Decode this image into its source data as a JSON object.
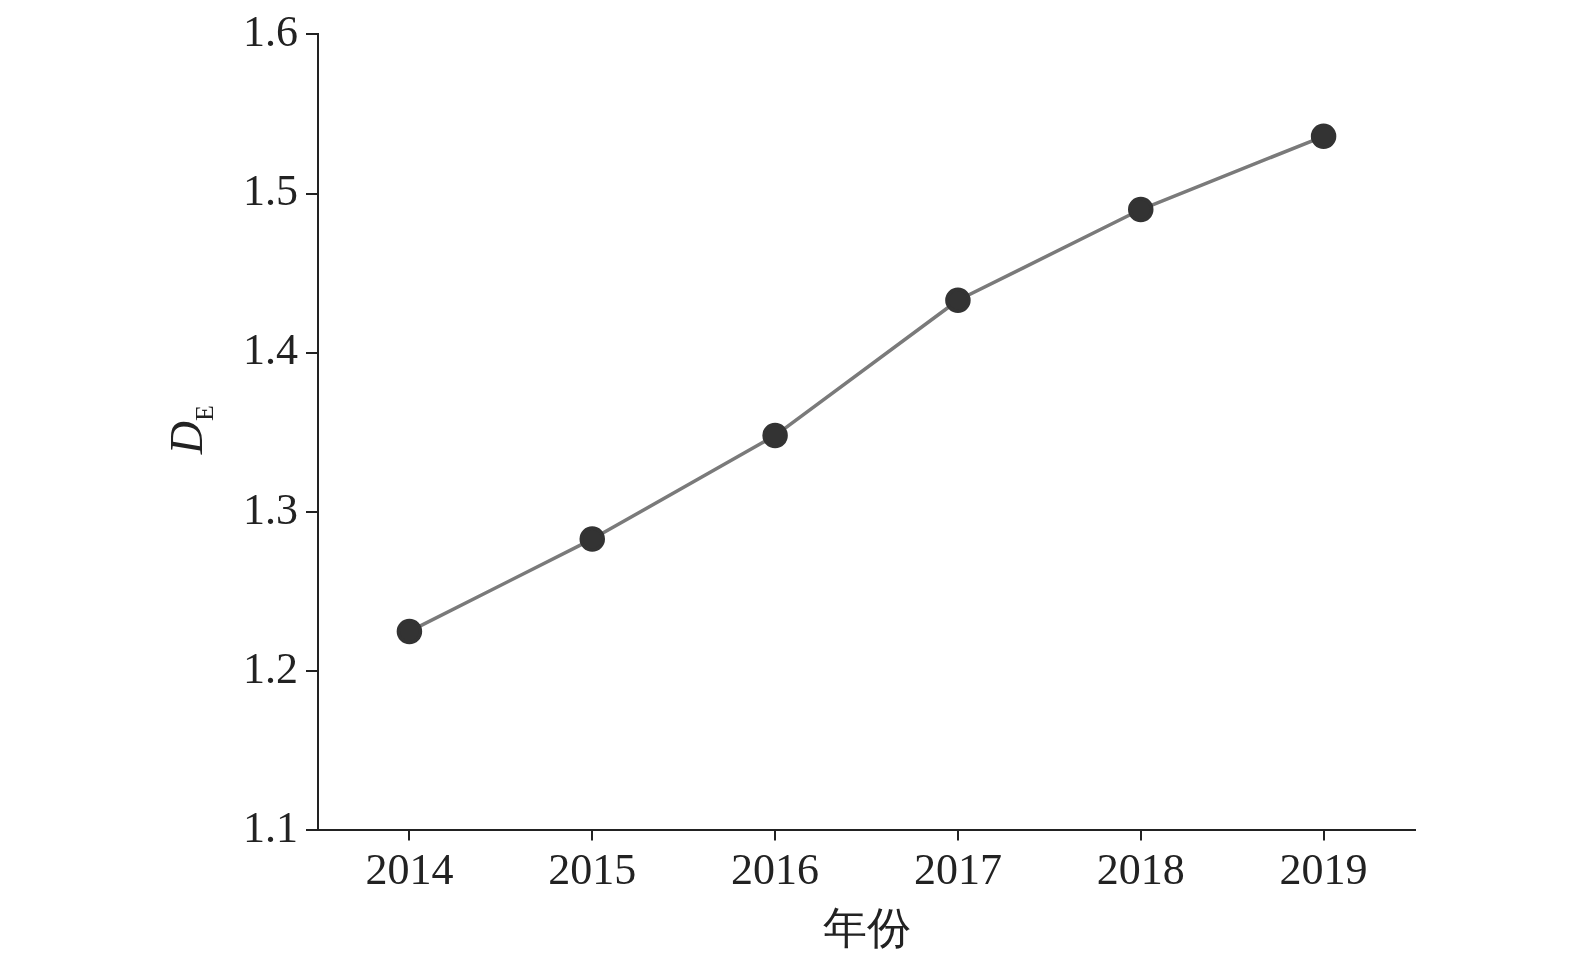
{
  "chart_data": {
    "type": "line",
    "xlabel": "年份",
    "ylabel": "D$_{E}$",
    "categories": [
      "2014",
      "2015",
      "2016",
      "2017",
      "2018",
      "2019"
    ],
    "series": [
      {
        "color": "#7a7a7a",
        "values": [
          1.225,
          1.283,
          1.348,
          1.433,
          1.49,
          1.536
        ]
      }
    ],
    "ylim": [
      1.1,
      1.6
    ],
    "yticks": [
      1.1,
      1.2,
      1.3,
      1.4,
      1.5,
      1.6
    ],
    "marker": "circle",
    "line_style": "solid",
    "grid": false,
    "legend": false
  }
}
